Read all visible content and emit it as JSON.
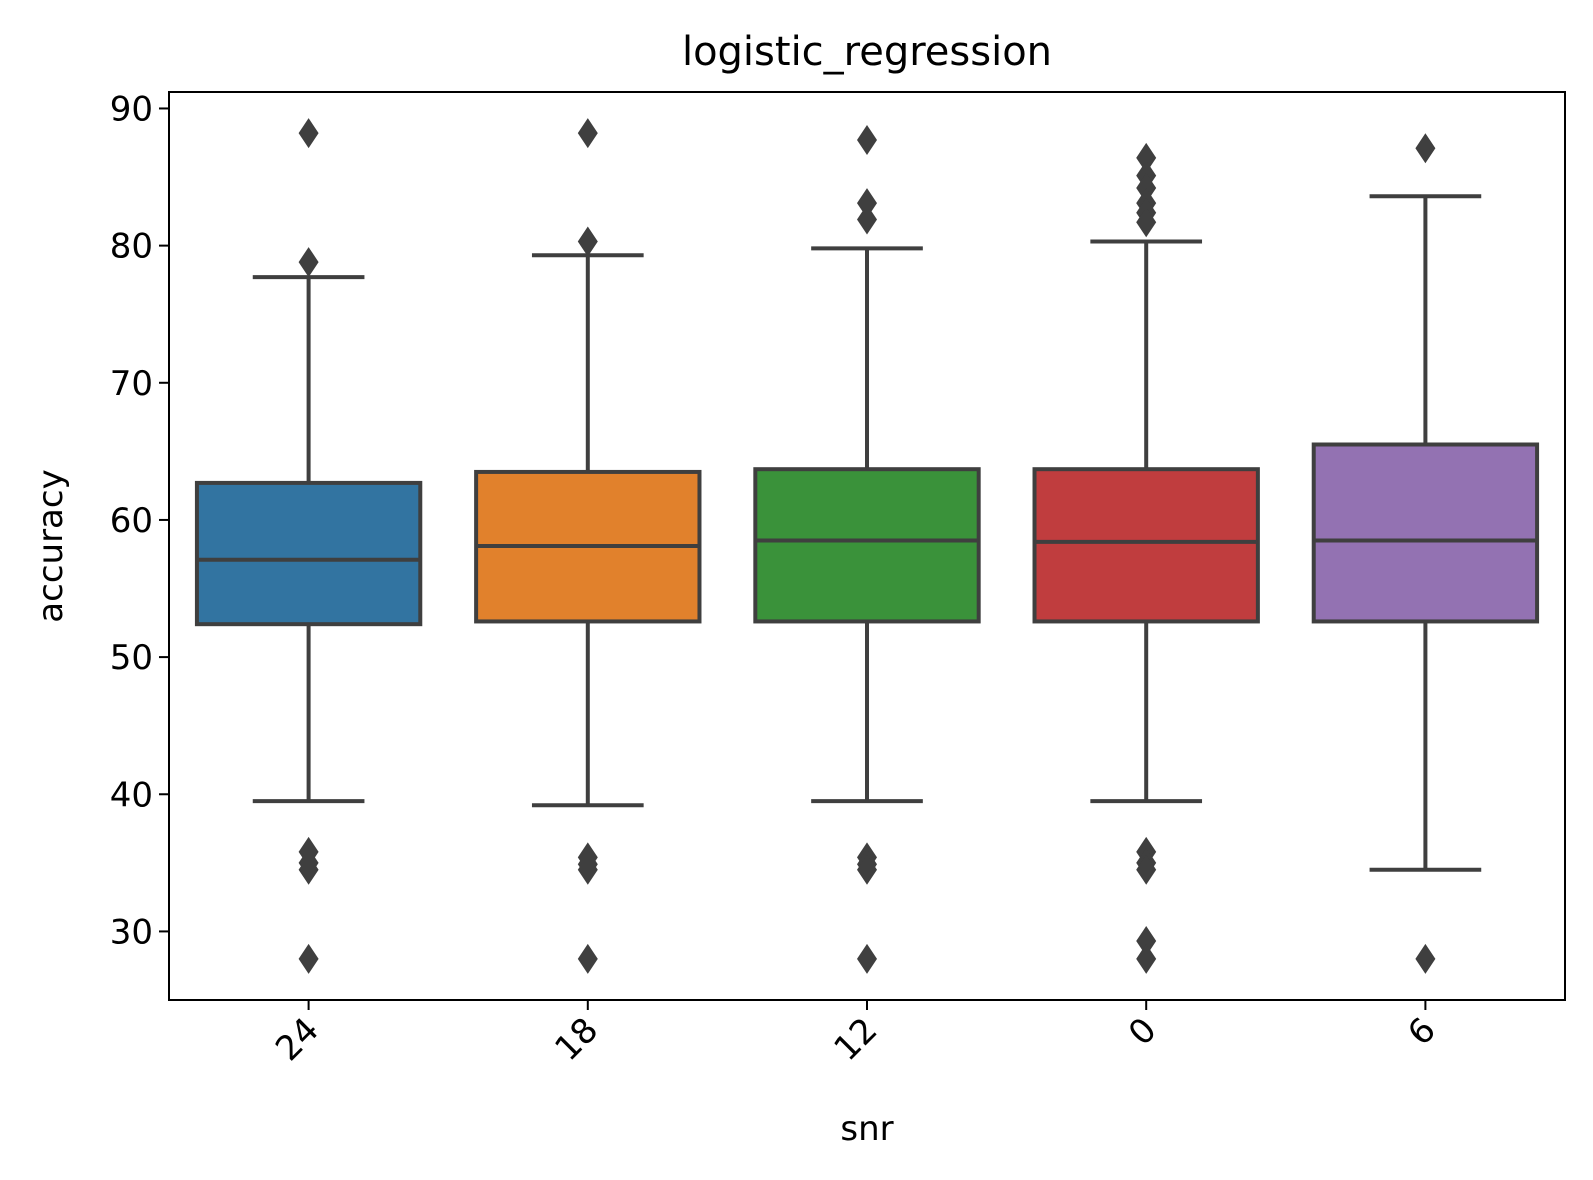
{
  "chart_data": {
    "type": "box",
    "title": "logistic_regression",
    "xlabel": "snr",
    "ylabel": "accuracy",
    "ylim": [
      25,
      91.2
    ],
    "yticks": [
      30,
      40,
      50,
      60,
      70,
      80,
      90
    ],
    "ytick_labels": [
      "30",
      "40",
      "50",
      "60",
      "70",
      "80",
      "90"
    ],
    "categories": [
      "24",
      "18",
      "12",
      "0",
      "6"
    ],
    "xtick_rotation_deg": 45,
    "grid": false,
    "legend": "none",
    "box_edge_color": "#3f3f3f",
    "boxes": [
      {
        "category": "24",
        "color": "#3274a1",
        "whisker_low": 39.5,
        "q1": 52.4,
        "median": 57.1,
        "q3": 62.7,
        "whisker_high": 77.7,
        "outliers": [
          88.2,
          78.8,
          35.8,
          35.0,
          34.5,
          28.0
        ]
      },
      {
        "category": "18",
        "color": "#e1812c",
        "whisker_low": 39.2,
        "q1": 52.6,
        "median": 58.1,
        "q3": 63.5,
        "whisker_high": 79.3,
        "outliers": [
          88.2,
          80.3,
          35.4,
          34.9,
          34.5,
          28.0
        ]
      },
      {
        "category": "12",
        "color": "#3a923a",
        "whisker_low": 39.5,
        "q1": 52.6,
        "median": 58.5,
        "q3": 63.7,
        "whisker_high": 79.8,
        "outliers": [
          87.7,
          83.1,
          81.9,
          35.4,
          34.9,
          34.5,
          28.0
        ]
      },
      {
        "category": "0",
        "color": "#c03d3e",
        "whisker_low": 39.5,
        "q1": 52.6,
        "median": 58.4,
        "q3": 63.7,
        "whisker_high": 80.3,
        "outliers": [
          86.4,
          85.1,
          84.2,
          83.1,
          82.4,
          81.7,
          35.8,
          35.0,
          34.5,
          29.3,
          28.0
        ]
      },
      {
        "category": "6",
        "color": "#9372b2",
        "whisker_low": 34.5,
        "q1": 52.6,
        "median": 58.5,
        "q3": 65.5,
        "whisker_high": 83.6,
        "outliers": [
          87.1,
          28.0
        ]
      }
    ]
  }
}
